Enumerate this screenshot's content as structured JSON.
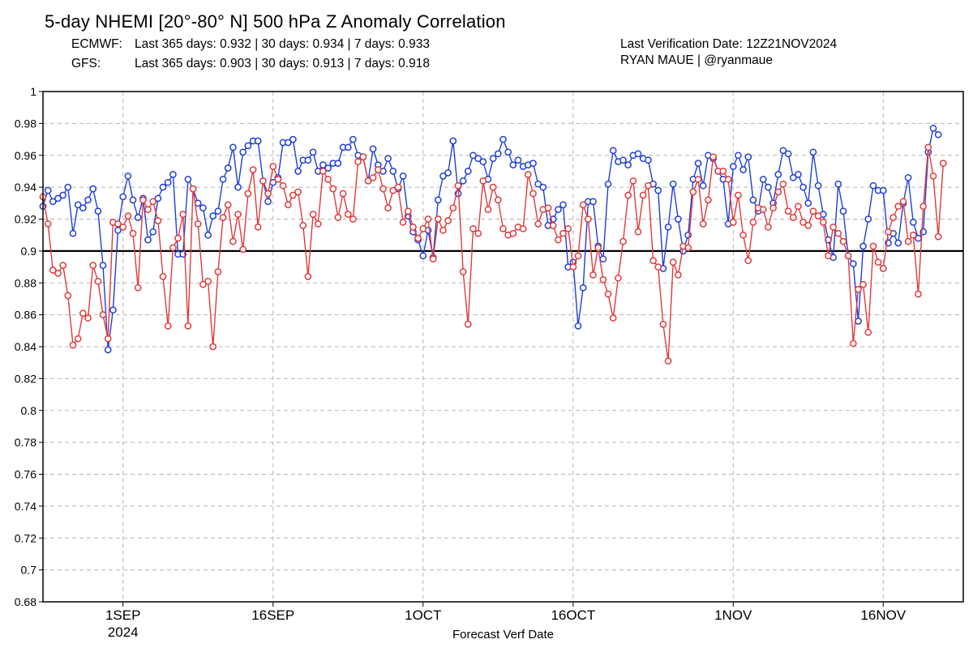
{
  "header": {
    "title": "5-day NHEMI [20°-80° N] 500 hPa Z Anomaly Correlation",
    "ecmwf_label": "ECMWF:",
    "ecmwf_stats": "Last 365 days: 0.932 | 30 days: 0.934 | 7 days: 0.933",
    "gfs_label": "GFS:",
    "gfs_stats": "Last 365 days: 0.903 | 30 days: 0.913 | 7 days: 0.918",
    "verification": "Last Verification Date: 12Z21NOV2024",
    "author": "RYAN MAUE | @ryanmaue"
  },
  "chart_data": {
    "type": "line",
    "title": "5-day NHEMI [20°-80° N] 500 hPa Z Anomaly Correlation",
    "xlabel": "Forecast Verf Date",
    "ylabel": "",
    "ylim": [
      0.68,
      1.0
    ],
    "yticks": [
      1,
      0.98,
      0.96,
      0.94,
      0.92,
      0.9,
      0.88,
      0.86,
      0.84,
      0.82,
      0.8,
      0.78,
      0.76,
      0.74,
      0.72,
      0.7,
      0.68
    ],
    "reference_line": 0.9,
    "xlim": [
      "2024-08-24",
      "2024-11-24"
    ],
    "xticks": [
      {
        "date": "2024-09-01",
        "label": "1SEP",
        "sublabel": "2024"
      },
      {
        "date": "2024-09-16",
        "label": "16SEP"
      },
      {
        "date": "2024-10-01",
        "label": "1OCT"
      },
      {
        "date": "2024-10-16",
        "label": "16OCT"
      },
      {
        "date": "2024-11-01",
        "label": "1NOV"
      },
      {
        "date": "2024-11-16",
        "label": "16NOV"
      }
    ],
    "grid": true,
    "series": [
      {
        "name": "ECMWF",
        "color": "#1f3fd8",
        "start": "2024-08-24",
        "step_hours": 12,
        "values": [
          0.928,
          0.938,
          0.931,
          0.933,
          0.935,
          0.94,
          0.911,
          0.929,
          0.927,
          0.932,
          0.939,
          0.925,
          0.891,
          0.838,
          0.863,
          0.913,
          0.934,
          0.947,
          0.932,
          0.921,
          0.933,
          0.907,
          0.912,
          0.933,
          0.94,
          0.943,
          0.948,
          0.898,
          0.898,
          0.945,
          0.939,
          0.93,
          0.927,
          0.91,
          0.922,
          0.925,
          0.945,
          0.952,
          0.965,
          0.94,
          0.962,
          0.966,
          0.969,
          0.969,
          0.944,
          0.931,
          0.943,
          0.946,
          0.968,
          0.968,
          0.97,
          0.95,
          0.957,
          0.957,
          0.962,
          0.95,
          0.954,
          0.952,
          0.955,
          0.955,
          0.965,
          0.965,
          0.97,
          0.96,
          0.959,
          0.944,
          0.964,
          0.954,
          0.95,
          0.958,
          0.95,
          0.939,
          0.947,
          0.922,
          0.912,
          0.907,
          0.897,
          0.913,
          0.896,
          0.932,
          0.947,
          0.949,
          0.969,
          0.936,
          0.944,
          0.95,
          0.96,
          0.958,
          0.956,
          0.945,
          0.958,
          0.961,
          0.97,
          0.962,
          0.954,
          0.957,
          0.953,
          0.954,
          0.955,
          0.942,
          0.94,
          0.916,
          0.92,
          0.926,
          0.929,
          0.89,
          0.893,
          0.853,
          0.877,
          0.931,
          0.931,
          0.903,
          0.895,
          0.942,
          0.963,
          0.956,
          0.957,
          0.954,
          0.96,
          0.961,
          0.958,
          0.957,
          0.942,
          0.938,
          0.889,
          0.915,
          0.942,
          0.92,
          0.9,
          0.91,
          0.945,
          0.955,
          0.941,
          0.96,
          0.958,
          0.95,
          0.945,
          0.917,
          0.953,
          0.96,
          0.951,
          0.959,
          0.932,
          0.925,
          0.945,
          0.94,
          0.93,
          0.948,
          0.963,
          0.961,
          0.946,
          0.948,
          0.94,
          0.93,
          0.962,
          0.941,
          0.923,
          0.907,
          0.896,
          0.942,
          0.925,
          0.897,
          0.892,
          0.856,
          0.903,
          0.92,
          0.941,
          0.938,
          0.938,
          0.905,
          0.911,
          0.905,
          0.93,
          0.946,
          0.918,
          0.908,
          0.912,
          0.962,
          0.977,
          0.973
        ]
      },
      {
        "name": "GFS",
        "color": "#e03a3a",
        "start": "2024-08-24",
        "step_hours": 12,
        "values": [
          0.934,
          0.917,
          0.888,
          0.886,
          0.891,
          0.872,
          0.841,
          0.845,
          0.861,
          0.858,
          0.891,
          0.881,
          0.86,
          0.845,
          0.918,
          0.917,
          0.915,
          0.922,
          0.911,
          0.877,
          0.932,
          0.926,
          0.931,
          0.919,
          0.884,
          0.853,
          0.902,
          0.908,
          0.923,
          0.853,
          0.939,
          0.917,
          0.879,
          0.881,
          0.84,
          0.887,
          0.921,
          0.929,
          0.906,
          0.923,
          0.901,
          0.936,
          0.951,
          0.915,
          0.944,
          0.936,
          0.953,
          0.945,
          0.941,
          0.929,
          0.935,
          0.937,
          0.916,
          0.884,
          0.923,
          0.917,
          0.95,
          0.945,
          0.939,
          0.921,
          0.936,
          0.923,
          0.92,
          0.956,
          0.959,
          0.944,
          0.946,
          0.951,
          0.939,
          0.927,
          0.938,
          0.94,
          0.918,
          0.925,
          0.915,
          0.908,
          0.914,
          0.92,
          0.895,
          0.92,
          0.913,
          0.919,
          0.927,
          0.941,
          0.887,
          0.854,
          0.914,
          0.911,
          0.944,
          0.926,
          0.94,
          0.932,
          0.914,
          0.91,
          0.911,
          0.915,
          0.914,
          0.948,
          0.936,
          0.917,
          0.926,
          0.927,
          0.916,
          0.907,
          0.911,
          0.914,
          0.89,
          0.897,
          0.929,
          0.92,
          0.885,
          0.902,
          0.882,
          0.873,
          0.858,
          0.883,
          0.906,
          0.935,
          0.944,
          0.912,
          0.935,
          0.941,
          0.894,
          0.89,
          0.854,
          0.831,
          0.893,
          0.885,
          0.903,
          0.902,
          0.937,
          0.945,
          0.917,
          0.932,
          0.959,
          0.95,
          0.95,
          0.945,
          0.918,
          0.935,
          0.91,
          0.894,
          0.918,
          0.927,
          0.926,
          0.915,
          0.927,
          0.937,
          0.942,
          0.925,
          0.921,
          0.928,
          0.918,
          0.916,
          0.925,
          0.922,
          0.918,
          0.897,
          0.915,
          0.911,
          0.906,
          0.897,
          0.842,
          0.876,
          0.879,
          0.849,
          0.903,
          0.893,
          0.889,
          0.912,
          0.921,
          0.928,
          0.931,
          0.906,
          0.91,
          0.873,
          0.928,
          0.965,
          0.947,
          0.909,
          0.955
        ]
      }
    ]
  }
}
